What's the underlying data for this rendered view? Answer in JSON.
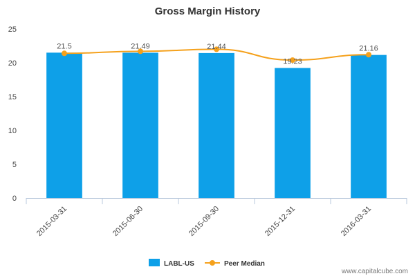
{
  "chart_data": {
    "type": "bar",
    "title": "Gross Margin History",
    "categories": [
      "2015-03-31",
      "2015-06-30",
      "2015-09-30",
      "2015-12-31",
      "2016-03-31"
    ],
    "series": [
      {
        "name": "LABL-US",
        "type": "bar",
        "values": [
          21.5,
          21.49,
          21.44,
          19.23,
          21.16
        ],
        "color": "#0ea0e8"
      },
      {
        "name": "Peer Median",
        "type": "line",
        "values": [
          21.4,
          21.7,
          22.0,
          20.4,
          21.2
        ],
        "color": "#f5a11c"
      }
    ],
    "data_labels": [
      "21.5",
      "21.49",
      "21.44",
      "19.23",
      "21.16"
    ],
    "yticks": [
      0,
      5,
      10,
      15,
      20,
      25
    ],
    "ylim": [
      0,
      25
    ],
    "xlabel": "",
    "ylabel": "",
    "grid": false,
    "legend_position": "bottom-center"
  },
  "watermark": "www.capitalcube.com"
}
